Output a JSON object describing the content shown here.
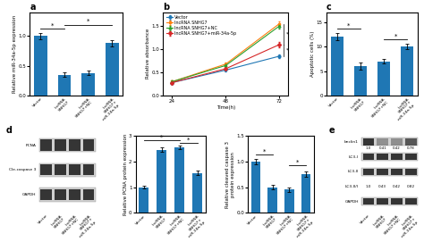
{
  "chart_data": [
    {
      "type": "bar",
      "title": "a",
      "categories": [
        "Vector",
        "lncRNA\nSNHG7",
        "lncRNA\nSNHG7+NC",
        "lncRNA\nSNHG7+\nmiR-34a-5p"
      ],
      "values": [
        1.0,
        0.35,
        0.38,
        0.88
      ],
      "errors": [
        0.05,
        0.04,
        0.04,
        0.05
      ],
      "y_label": "Relative miR-34a-5p expression",
      "ylim": [
        0,
        1.4
      ],
      "yticks": [
        0.0,
        0.5,
        1.0
      ],
      "annotations": [
        {
          "text": "*",
          "from": "Vector",
          "to": "lncRNA\nSNHG7",
          "y": 1.12
        },
        {
          "text": "*",
          "from": "lncRNA\nSNHG7",
          "to": "lncRNA\nSNHG7+\nmiR-34a-5p",
          "y": 1.19
        }
      ]
    },
    {
      "type": "line",
      "title": "b",
      "x": [
        24,
        48,
        72
      ],
      "xlim": [
        20,
        76
      ],
      "xticks": [
        24,
        48,
        72
      ],
      "x_label": "Time(h)",
      "y_label": "Relative absorbance",
      "ylim": [
        0.0,
        1.8
      ],
      "yticks": [
        0.0,
        0.5,
        1.0,
        1.5
      ],
      "legend": "upper left",
      "series": [
        {
          "name": "Vector",
          "values": [
            0.28,
            0.55,
            0.85
          ],
          "errors": [
            0.02,
            0.03,
            0.04
          ],
          "marker": "circle"
        },
        {
          "name": "lncRNA SNHG7",
          "values": [
            0.3,
            0.68,
            1.55
          ],
          "errors": [
            0.02,
            0.04,
            0.05
          ],
          "marker": "square"
        },
        {
          "name": "lncRNA SNHG7+NC",
          "values": [
            0.3,
            0.65,
            1.5
          ],
          "errors": [
            0.02,
            0.04,
            0.05
          ],
          "marker": "triangle"
        },
        {
          "name": "lncRNA SNHG7+miR-34a-5p",
          "values": [
            0.28,
            0.58,
            1.1
          ],
          "errors": [
            0.02,
            0.03,
            0.05
          ],
          "marker": "diamond"
        }
      ],
      "annotations": [
        {
          "text": "*",
          "x": 74,
          "from": 1.1,
          "to": 1.55
        },
        {
          "text": "*",
          "x": 74,
          "from": 0.85,
          "to": 1.1
        }
      ]
    },
    {
      "type": "bar",
      "title": "c",
      "categories": [
        "Vector",
        "lncRNA\nSNHG7",
        "lncRNA\nSNHG7+NC",
        "lncRNA\nSNHG7+\nmiR-34a-5p"
      ],
      "values": [
        12.0,
        6.0,
        7.0,
        10.0
      ],
      "errors": [
        0.8,
        0.7,
        0.5,
        0.6
      ],
      "y_label": "Apoptotic cells (%)",
      "ylim": [
        0,
        17
      ],
      "yticks": [
        0,
        5,
        10,
        15
      ],
      "annotations": [
        {
          "text": "*",
          "from": "Vector",
          "to": "lncRNA\nSNHG7",
          "y": 13.6
        },
        {
          "text": "*",
          "from": "lncRNA\nSNHG7+NC",
          "to": "lncRNA\nSNHG7+\nmiR-34a-5p",
          "y": 11.5
        }
      ]
    },
    {
      "type": "blot",
      "title": "d",
      "categories": [
        "Vector",
        "lncRNA\nSNHG7",
        "lncRNA\nSNHG7+NC",
        "lncRNA\nSNHG7+\nmiR-34a-5p"
      ],
      "rows": [
        {
          "label": "PCNA",
          "type": "band"
        },
        {
          "label": "Cle-caspase 3",
          "type": "band"
        },
        {
          "label": "GAPDH",
          "type": "band"
        }
      ]
    },
    {
      "type": "bar",
      "categories": [
        "Vector",
        "lncRNA\nSNHG7",
        "lncRNA\nSNHG7+NC",
        "lncRNA\nSNHG7+\nmiR-34a-5p"
      ],
      "values": [
        1.0,
        2.45,
        2.55,
        1.55
      ],
      "errors": [
        0.06,
        0.08,
        0.07,
        0.08
      ],
      "y_label": "Relative PCNA protein expression",
      "ylim": [
        0,
        3.0
      ],
      "yticks": [
        0,
        1,
        2,
        3
      ],
      "annotations": [
        {
          "text": "*",
          "from": "Vector",
          "to": "lncRNA\nSNHG7+NC",
          "y": 2.82
        },
        {
          "text": "*",
          "from": "lncRNA\nSNHG7+NC",
          "to": "lncRNA\nSNHG7+\nmiR-34a-5p",
          "y": 2.72
        }
      ]
    },
    {
      "type": "bar",
      "categories": [
        "Vector",
        "lncRNA\nSNHG7",
        "lncRNA\nSNHG7+NC",
        "lncRNA\nSNHG7+\nmiR-34a-5p"
      ],
      "values": [
        1.0,
        0.5,
        0.45,
        0.75
      ],
      "errors": [
        0.05,
        0.04,
        0.04,
        0.05
      ],
      "y_label": "Relative cleaved caspase 3\nprotein expression",
      "ylim": [
        0,
        1.5
      ],
      "yticks": [
        0.0,
        0.5,
        1.0,
        1.5
      ],
      "annotations": [
        {
          "text": "*",
          "from": "Vector",
          "to": "lncRNA\nSNHG7",
          "y": 1.13
        },
        {
          "text": "*",
          "from": "lncRNA\nSNHG7+NC",
          "to": "lncRNA\nSNHG7+\nmiR-34a-5p",
          "y": 0.93
        }
      ]
    },
    {
      "type": "blot",
      "title": "e",
      "categories": [
        "Vector",
        "lncRNA\nSNHG7",
        "lncRNA\nSNHG7+NC",
        "lncRNA\nSNHG7+\nmiR-34a-5p"
      ],
      "rows": [
        {
          "label": "beclin1",
          "type": "band",
          "values": [
            1.0,
            0.41,
            0.42,
            0.78
          ]
        },
        {
          "label": "LC3-I",
          "type": "band"
        },
        {
          "label": "LC3-II",
          "type": "band"
        },
        {
          "label": "LC3-II/I",
          "type": "text",
          "values": [
            1.0,
            0.43,
            0.42,
            0.82
          ]
        },
        {
          "label": "GAPDH",
          "type": "band"
        }
      ]
    }
  ]
}
